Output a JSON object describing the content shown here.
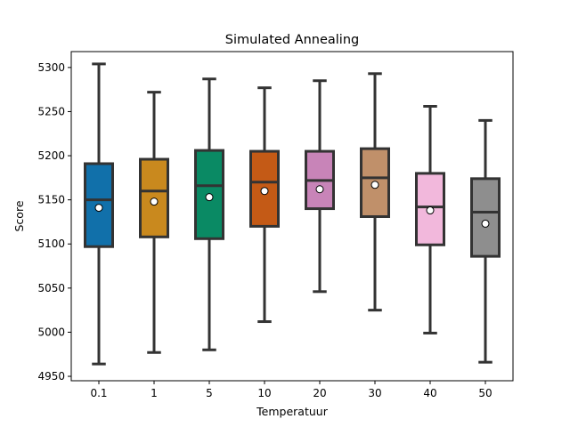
{
  "chart_data": {
    "type": "box",
    "title": "Simulated Annealing",
    "xlabel": "Temperatuur",
    "ylabel": "Score",
    "ylim": [
      4945,
      5318
    ],
    "yticks": [
      4950,
      5000,
      5050,
      5100,
      5150,
      5200,
      5250,
      5300
    ],
    "grid": false,
    "categories": [
      "0.1",
      "1",
      "5",
      "10",
      "20",
      "30",
      "40",
      "50"
    ],
    "boxes": [
      {
        "category": "0.1",
        "color": "#1170aa",
        "whisker_low": 4964,
        "q1": 5097,
        "median": 5150,
        "q3": 5191,
        "whisker_high": 5304,
        "mean": 5141
      },
      {
        "category": "1",
        "color": "#c9891e",
        "whisker_low": 4977,
        "q1": 5108,
        "median": 5160,
        "q3": 5196,
        "whisker_high": 5272,
        "mean": 5148
      },
      {
        "category": "5",
        "color": "#0a8a64",
        "whisker_low": 4980,
        "q1": 5106,
        "median": 5166,
        "q3": 5206,
        "whisker_high": 5287,
        "mean": 5153
      },
      {
        "category": "10",
        "color": "#c45a16",
        "whisker_low": 5012,
        "q1": 5120,
        "median": 5170,
        "q3": 5205,
        "whisker_high": 5277,
        "mean": 5160
      },
      {
        "category": "20",
        "color": "#c884b8",
        "whisker_low": 5046,
        "q1": 5140,
        "median": 5172,
        "q3": 5205,
        "whisker_high": 5285,
        "mean": 5162
      },
      {
        "category": "30",
        "color": "#c0906a",
        "whisker_low": 5025,
        "q1": 5131,
        "median": 5175,
        "q3": 5208,
        "whisker_high": 5293,
        "mean": 5167
      },
      {
        "category": "40",
        "color": "#f2b8dc",
        "whisker_low": 4999,
        "q1": 5099,
        "median": 5142,
        "q3": 5180,
        "whisker_high": 5256,
        "mean": 5138
      },
      {
        "category": "50",
        "color": "#8e8e8e",
        "whisker_low": 4966,
        "q1": 5086,
        "median": 5136,
        "q3": 5174,
        "whisker_high": 5240,
        "mean": 5123
      }
    ]
  }
}
